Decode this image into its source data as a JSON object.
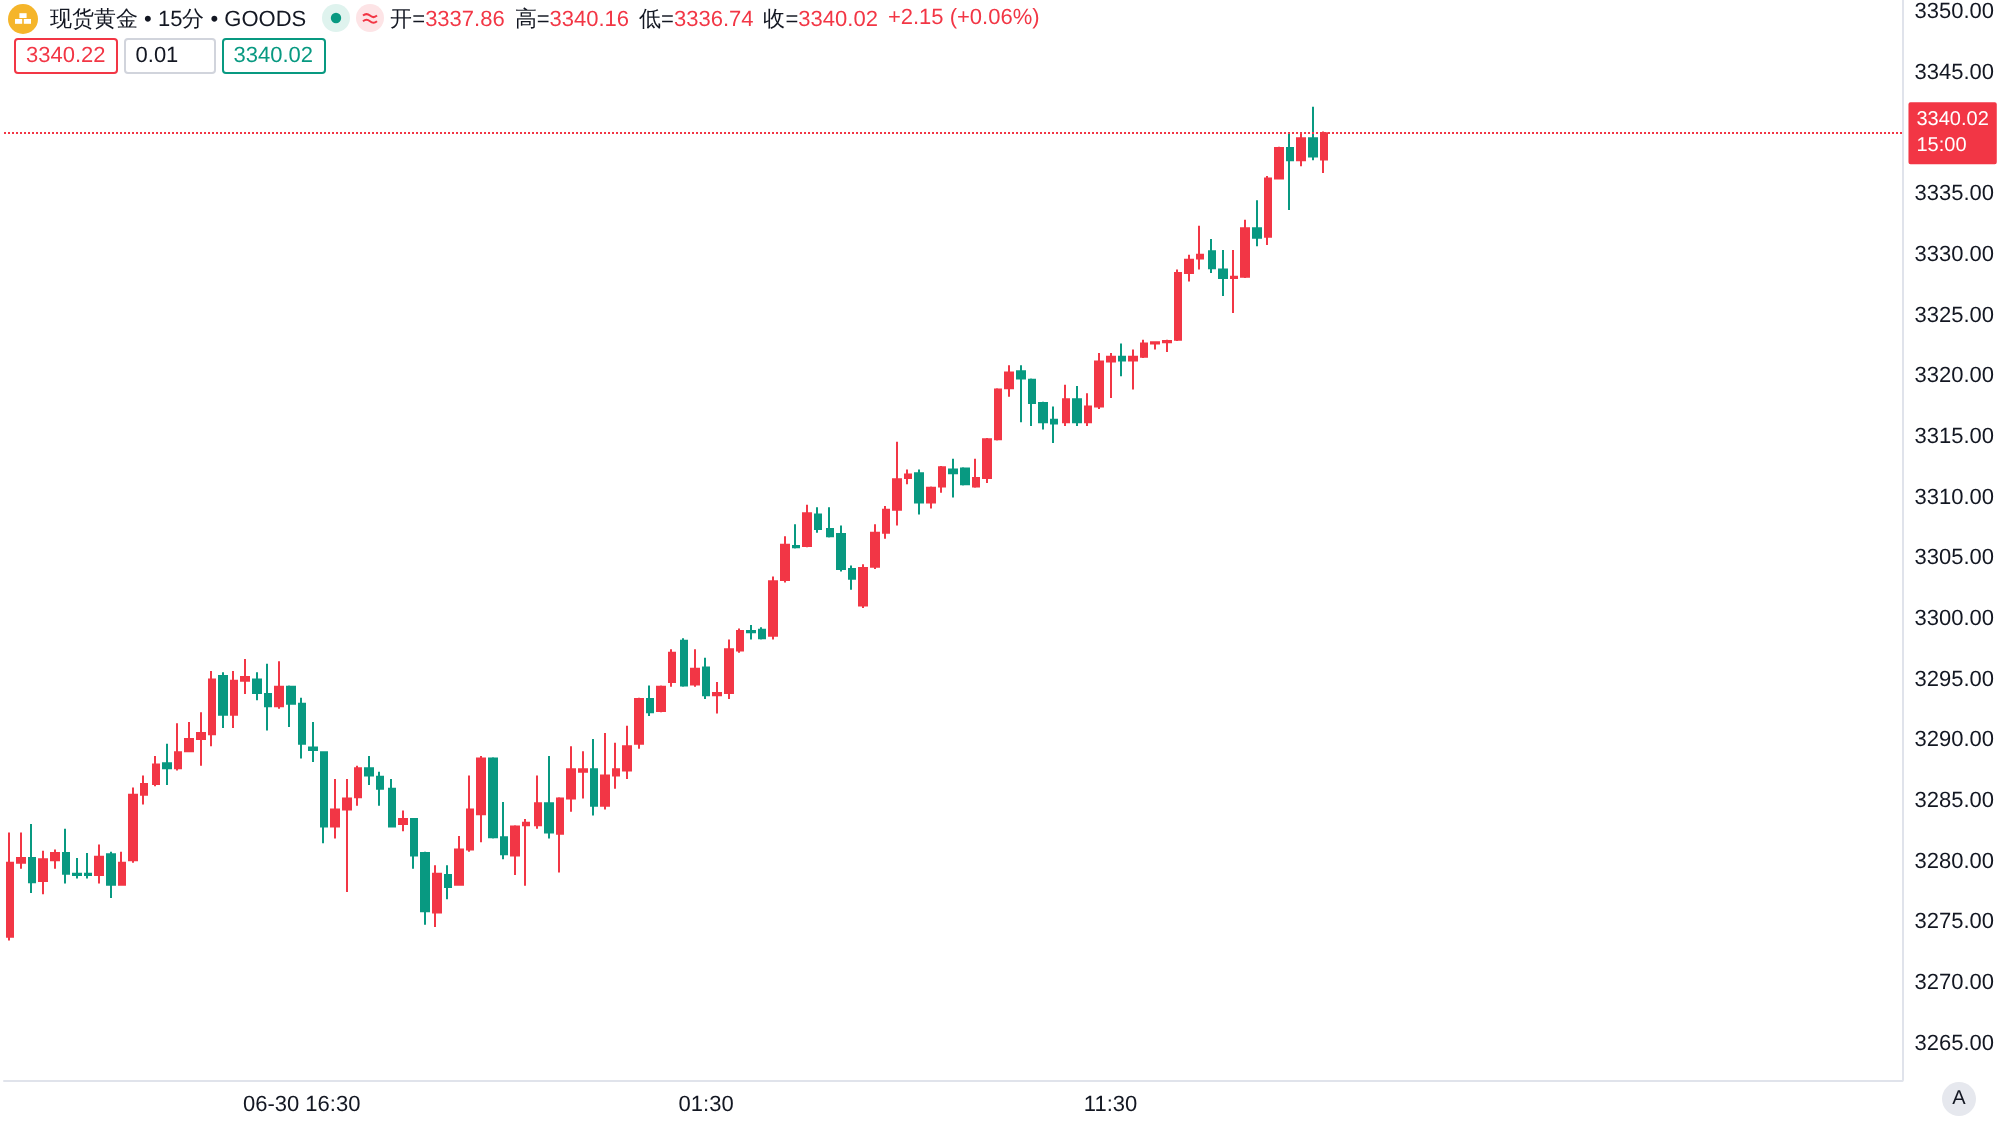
{
  "chart_data": {
    "type": "candlestick",
    "title": "现货黄金 • 15分 • GOODS",
    "categories": [
      null,
      null,
      null,
      null,
      null,
      null,
      null,
      null,
      null,
      null,
      null,
      null,
      null,
      null,
      null,
      null,
      null,
      null,
      null,
      null,
      null,
      null,
      null,
      null,
      null,
      null,
      "06-30 16:30",
      null,
      null,
      null,
      null,
      null,
      null,
      null,
      null,
      null,
      null,
      null,
      null,
      null,
      null,
      null,
      null,
      null,
      null,
      null,
      null,
      null,
      null,
      null,
      null,
      null,
      null,
      null,
      null,
      null,
      null,
      null,
      null,
      null,
      null,
      null,
      "01:30",
      null,
      null,
      null,
      null,
      null,
      null,
      null,
      null,
      null,
      null,
      null,
      null,
      null,
      null,
      null,
      null,
      null,
      null,
      null,
      null,
      null,
      null,
      null,
      null,
      null,
      null,
      null,
      null,
      null,
      null,
      null,
      null,
      null,
      null,
      null,
      "11:30",
      null,
      null,
      null,
      null,
      null,
      null,
      null,
      null,
      null,
      null,
      null,
      null,
      null,
      null,
      null,
      null,
      null,
      null,
      null,
      null,
      null,
      null,
      null,
      null,
      null,
      null,
      null,
      null,
      null,
      null,
      null,
      null,
      null,
      null,
      null,
      null,
      null,
      null,
      null,
      null,
      null,
      null,
      null,
      null,
      null,
      null,
      null,
      null,
      null,
      null,
      null,
      null,
      null,
      null,
      null,
      null,
      null,
      null,
      null,
      null,
      null,
      null,
      null,
      null,
      null,
      null,
      null,
      null,
      null,
      null
    ],
    "ohlc": [
      [
        3273.8,
        3282.4,
        3273.5,
        3279.9
      ],
      [
        3279.9,
        3282.4,
        3279.4,
        3280.3
      ],
      [
        3280.3,
        3283.1,
        3277.4,
        3278.3
      ],
      [
        3278.4,
        3280.9,
        3277.3,
        3280.2
      ],
      [
        3280.1,
        3281.0,
        3279.4,
        3280.7
      ],
      [
        3280.7,
        3282.7,
        3278.2,
        3279.0
      ],
      [
        3279.0,
        3280.3,
        3278.6,
        3278.9
      ],
      [
        3279.0,
        3280.7,
        3278.6,
        3278.9
      ],
      [
        3278.9,
        3281.4,
        3278.2,
        3280.4
      ],
      [
        3280.6,
        3280.8,
        3277.0,
        3278.1
      ],
      [
        3278.1,
        3280.8,
        3278.0,
        3279.9
      ],
      [
        3280.1,
        3286.1,
        3279.9,
        3285.5
      ],
      [
        3285.5,
        3287.1,
        3284.7,
        3286.4
      ],
      [
        3286.4,
        3288.7,
        3286.2,
        3288.0
      ],
      [
        3288.1,
        3289.7,
        3286.3,
        3287.7
      ],
      [
        3287.7,
        3291.4,
        3287.5,
        3289.0
      ],
      [
        3289.1,
        3291.5,
        3289.0,
        3290.1
      ],
      [
        3290.1,
        3292.3,
        3287.9,
        3290.6
      ],
      [
        3290.5,
        3295.7,
        3289.5,
        3295.0
      ],
      [
        3295.3,
        3295.6,
        3291.0,
        3292.1
      ],
      [
        3292.1,
        3295.7,
        3291.0,
        3294.9
      ],
      [
        3294.9,
        3296.7,
        3293.8,
        3295.2
      ],
      [
        3295.0,
        3295.6,
        3293.3,
        3293.9
      ],
      [
        3293.8,
        3296.3,
        3290.8,
        3292.8
      ],
      [
        3292.8,
        3296.5,
        3292.6,
        3294.4
      ],
      [
        3294.4,
        3294.5,
        3291.1,
        3293.0
      ],
      [
        3293.0,
        3293.5,
        3288.5,
        3289.7
      ],
      [
        3289.4,
        3291.5,
        3288.2,
        3289.2
      ],
      [
        3289.0,
        3289.1,
        3281.5,
        3282.9
      ],
      [
        3282.9,
        3286.8,
        3281.9,
        3284.3
      ],
      [
        3284.3,
        3286.8,
        3277.5,
        3285.2
      ],
      [
        3285.3,
        3287.9,
        3284.6,
        3287.7
      ],
      [
        3287.7,
        3288.7,
        3286.3,
        3287.1
      ],
      [
        3287.0,
        3287.4,
        3284.6,
        3286.0
      ],
      [
        3286.0,
        3286.8,
        3282.8,
        3282.9
      ],
      [
        3283.1,
        3284.2,
        3282.5,
        3283.5
      ],
      [
        3283.5,
        3283.6,
        3279.4,
        3280.5
      ],
      [
        3280.7,
        3280.8,
        3274.8,
        3275.9
      ],
      [
        3275.8,
        3279.7,
        3274.6,
        3279.0
      ],
      [
        3278.9,
        3279.7,
        3276.9,
        3277.9
      ],
      [
        3278.1,
        3282.1,
        3278.0,
        3281.0
      ],
      [
        3281.0,
        3287.1,
        3280.8,
        3284.3
      ],
      [
        3283.9,
        3288.7,
        3281.6,
        3288.5
      ],
      [
        3288.5,
        3288.6,
        3281.9,
        3282.0
      ],
      [
        3282.0,
        3284.9,
        3280.2,
        3280.6
      ],
      [
        3280.5,
        3283.0,
        3278.9,
        3282.9
      ],
      [
        3283.0,
        3283.5,
        3278.0,
        3283.2
      ],
      [
        3283.0,
        3287.1,
        3282.7,
        3284.8
      ],
      [
        3284.8,
        3288.7,
        3281.9,
        3282.4
      ],
      [
        3282.3,
        3285.3,
        3279.1,
        3285.2
      ],
      [
        3285.2,
        3289.5,
        3284.1,
        3287.6
      ],
      [
        3287.4,
        3289.1,
        3285.2,
        3287.6
      ],
      [
        3287.6,
        3290.1,
        3283.8,
        3284.6
      ],
      [
        3284.6,
        3290.6,
        3284.3,
        3287.1
      ],
      [
        3287.1,
        3289.8,
        3286.0,
        3287.6
      ],
      [
        3287.5,
        3291.2,
        3286.8,
        3289.5
      ],
      [
        3289.7,
        3293.5,
        3289.3,
        3293.4
      ],
      [
        3293.4,
        3294.5,
        3292.0,
        3292.3
      ],
      [
        3292.4,
        3294.5,
        3292.3,
        3294.4
      ],
      [
        3294.8,
        3297.5,
        3294.4,
        3297.2
      ],
      [
        3298.2,
        3298.4,
        3294.4,
        3294.5
      ],
      [
        3294.6,
        3297.5,
        3294.4,
        3295.9
      ],
      [
        3296.0,
        3296.8,
        3293.4,
        3293.7
      ],
      [
        3293.7,
        3294.8,
        3292.2,
        3293.9
      ],
      [
        3293.9,
        3298.3,
        3293.4,
        3297.5
      ],
      [
        3297.4,
        3299.2,
        3297.2,
        3299.0
      ],
      [
        3299.0,
        3299.5,
        3298.3,
        3298.9
      ],
      [
        3299.1,
        3299.3,
        3298.3,
        3298.4
      ],
      [
        3298.6,
        3303.5,
        3298.3,
        3303.1
      ],
      [
        3303.2,
        3306.8,
        3303.0,
        3306.1
      ],
      [
        3306.0,
        3307.8,
        3305.8,
        3305.9
      ],
      [
        3306.0,
        3309.4,
        3305.9,
        3308.7
      ],
      [
        3308.6,
        3309.2,
        3307.1,
        3307.4
      ],
      [
        3307.4,
        3309.2,
        3306.7,
        3306.8
      ],
      [
        3307.0,
        3307.7,
        3303.9,
        3304.1
      ],
      [
        3304.1,
        3304.4,
        3302.4,
        3303.3
      ],
      [
        3301.1,
        3304.5,
        3300.9,
        3304.2
      ],
      [
        3304.3,
        3307.8,
        3304.1,
        3307.1
      ],
      [
        3307.1,
        3309.3,
        3306.6,
        3309.0
      ],
      [
        3309.0,
        3314.6,
        3307.7,
        3311.5
      ],
      [
        3311.6,
        3312.3,
        3311.1,
        3311.9
      ],
      [
        3312.0,
        3312.3,
        3308.6,
        3309.6
      ],
      [
        3309.6,
        3310.9,
        3309.1,
        3310.8
      ],
      [
        3310.9,
        3312.6,
        3310.4,
        3312.5
      ],
      [
        3312.3,
        3313.2,
        3310.0,
        3312.0
      ],
      [
        3312.4,
        3312.5,
        3311.0,
        3311.1
      ],
      [
        3310.9,
        3313.2,
        3310.8,
        3311.6
      ],
      [
        3311.6,
        3314.9,
        3311.2,
        3314.8
      ],
      [
        3314.8,
        3319.0,
        3314.7,
        3318.9
      ],
      [
        3319.0,
        3320.9,
        3318.3,
        3320.3
      ],
      [
        3320.4,
        3320.9,
        3316.2,
        3319.8
      ],
      [
        3319.7,
        3319.8,
        3315.9,
        3317.8
      ],
      [
        3317.8,
        3317.9,
        3315.6,
        3316.2
      ],
      [
        3316.4,
        3317.5,
        3314.5,
        3316.1
      ],
      [
        3316.2,
        3319.3,
        3315.9,
        3318.1
      ],
      [
        3318.1,
        3319.2,
        3315.9,
        3316.2
      ],
      [
        3316.2,
        3318.6,
        3315.9,
        3317.5
      ],
      [
        3317.5,
        3321.9,
        3317.3,
        3321.2
      ],
      [
        3321.2,
        3321.9,
        3318.2,
        3321.6
      ],
      [
        3321.6,
        3322.7,
        3320.0,
        3321.3
      ],
      [
        3321.3,
        3322.2,
        3318.9,
        3321.6
      ],
      [
        3321.6,
        3323.0,
        3321.5,
        3322.7
      ],
      [
        3322.7,
        3322.8,
        3322.2,
        3322.8
      ],
      [
        3322.8,
        3323.0,
        3322.0,
        3322.9
      ],
      [
        3323.0,
        3328.8,
        3322.9,
        3328.5
      ],
      [
        3328.5,
        3330.0,
        3327.8,
        3329.6
      ],
      [
        3329.7,
        3332.4,
        3328.8,
        3330.0
      ],
      [
        3330.3,
        3331.3,
        3328.5,
        3328.9
      ],
      [
        3328.8,
        3330.4,
        3326.6,
        3328.1
      ],
      [
        3328.1,
        3330.4,
        3325.2,
        3328.2
      ],
      [
        3328.2,
        3332.9,
        3328.1,
        3332.2
      ],
      [
        3332.2,
        3334.5,
        3330.7,
        3331.4
      ],
      [
        3331.5,
        3336.5,
        3330.8,
        3336.3
      ],
      [
        3336.3,
        3338.9,
        3336.2,
        3338.8
      ],
      [
        3338.8,
        3340.0,
        3333.7,
        3337.8
      ],
      [
        3337.8,
        3340.1,
        3337.3,
        3339.6
      ],
      [
        3339.6,
        3342.2,
        3337.8,
        3338.1
      ],
      [
        3337.86,
        3340.16,
        3336.74,
        3340.02
      ],
      null,
      null,
      null,
      null,
      null,
      null,
      null,
      null,
      null,
      null,
      null,
      null,
      null,
      null,
      null,
      null,
      null,
      null,
      null,
      null,
      null,
      null,
      null,
      null,
      null,
      null,
      null,
      null,
      null,
      null,
      null,
      null,
      null,
      null,
      null,
      null,
      null,
      null,
      null,
      null,
      null,
      null,
      null,
      null,
      null,
      null,
      null,
      null,
      null,
      null,
      null
    ],
    "colors": [
      "#f23645",
      "#f23645",
      "#089981",
      "#f23645",
      "#f23645",
      "#089981",
      "#089981",
      "#089981",
      "#f23645",
      "#089981",
      "#f23645",
      "#f23645",
      "#f23645",
      "#f23645",
      "#089981",
      "#f23645",
      "#f23645",
      "#f23645",
      "#f23645",
      "#089981",
      "#f23645",
      "#f23645",
      "#089981",
      "#089981",
      "#f23645",
      "#089981",
      "#089981",
      "#089981",
      "#089981",
      "#f23645",
      "#f23645",
      "#f23645",
      "#089981",
      "#089981",
      "#089981",
      "#f23645",
      "#089981",
      "#089981",
      "#f23645",
      "#089981",
      "#f23645",
      "#f23645",
      "#f23645",
      "#089981",
      "#089981",
      "#f23645",
      "#f23645",
      "#f23645",
      "#089981",
      "#f23645",
      "#f23645",
      "#f23645",
      "#089981",
      "#f23645",
      "#f23645",
      "#f23645",
      "#f23645",
      "#089981",
      "#f23645",
      "#f23645",
      "#089981",
      "#f23645",
      "#089981",
      "#f23645",
      "#f23645",
      "#f23645",
      "#089981",
      "#089981",
      "#f23645",
      "#f23645",
      "#089981",
      "#f23645",
      "#089981",
      "#089981",
      "#089981",
      "#089981",
      "#f23645",
      "#f23645",
      "#f23645",
      "#f23645",
      "#f23645",
      "#089981",
      "#f23645",
      "#f23645",
      "#089981",
      "#089981",
      "#f23645",
      "#f23645",
      "#f23645",
      "#f23645",
      "#089981",
      "#089981",
      "#089981",
      "#089981",
      "#f23645",
      "#089981",
      "#f23645",
      "#f23645",
      "#f23645",
      "#089981",
      "#f23645",
      "#f23645",
      "#f23645",
      "#f23645",
      "#f23645",
      "#f23645",
      "#f23645",
      "#089981",
      "#089981",
      "#f23645",
      "#f23645",
      "#089981",
      "#f23645",
      "#f23645",
      "#089981",
      "#f23645",
      "#089981",
      "#f23645",
      null,
      null,
      null,
      null,
      null,
      null,
      null,
      null,
      null,
      null,
      null,
      null,
      null,
      null,
      null,
      null,
      null,
      null,
      null,
      null,
      null,
      null,
      null,
      null,
      null,
      null,
      null,
      null,
      null,
      null,
      null,
      null,
      null,
      null,
      null,
      null,
      null,
      null,
      null,
      null,
      null,
      null,
      null,
      null,
      null,
      null,
      null,
      null,
      null,
      null,
      null
    ],
    "ylim": [
      3262,
      3351
    ],
    "yticks": [
      {
        "value": 3265,
        "label": "3265.00"
      },
      {
        "value": 3270,
        "label": "3270.00"
      },
      {
        "value": 3275,
        "label": "3275.00"
      },
      {
        "value": 3280,
        "label": "3280.00"
      },
      {
        "value": 3285,
        "label": "3285.00"
      },
      {
        "value": 3290,
        "label": "3290.00"
      },
      {
        "value": 3295,
        "label": "3295.00"
      },
      {
        "value": 3300,
        "label": "3300.00"
      },
      {
        "value": 3305,
        "label": "3305.00"
      },
      {
        "value": 3310,
        "label": "3310.00"
      },
      {
        "value": 3315,
        "label": "3315.00"
      },
      {
        "value": 3320,
        "label": "3320.00"
      },
      {
        "value": 3325,
        "label": "3325.00"
      },
      {
        "value": 3330,
        "label": "3330.00"
      },
      {
        "value": 3335,
        "label": "3335.00"
      },
      {
        "value": 3340,
        "label": null
      },
      {
        "value": 3345,
        "label": "3345.00"
      },
      {
        "value": 3350,
        "label": "3350.00"
      }
    ],
    "ref_lines": [
      {
        "axis": "y",
        "value": 3340.02,
        "label": "3340.02\n15:00",
        "color": "#f23645",
        "line_style": "dotted"
      }
    ],
    "annotations": [
      "开=3337.86",
      "高=3340.16",
      "低=3336.74",
      "收=3340.02",
      "+2.15 (+0.06%)",
      "3340.22",
      "0.01",
      "3340.02",
      "A"
    ]
  }
}
